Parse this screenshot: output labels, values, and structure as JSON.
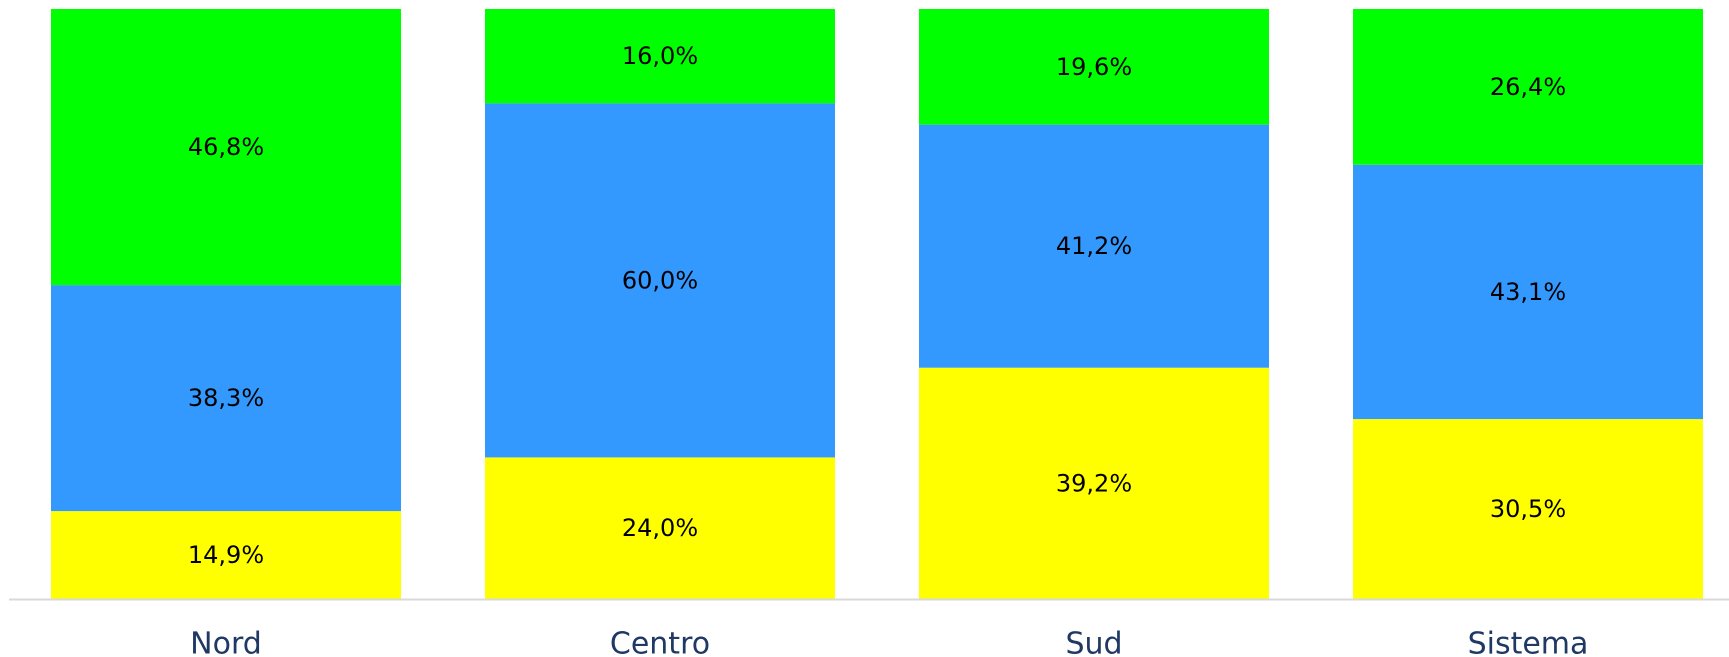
{
  "chart_data": {
    "type": "bar",
    "stacked": true,
    "categories": [
      "Nord",
      "Centro",
      "Sud",
      "Sistema"
    ],
    "series": [
      {
        "color": "#ffff00",
        "values": [
          14.9,
          24.0,
          39.2,
          30.5
        ],
        "labels": [
          "14,9%",
          "24,0%",
          "39,2%",
          "30,5%"
        ]
      },
      {
        "color": "#3399ff",
        "values": [
          38.3,
          60.0,
          41.2,
          43.1
        ],
        "labels": [
          "38,3%",
          "60,0%",
          "41,2%",
          "43,1%"
        ]
      },
      {
        "color": "#00ff00",
        "values": [
          46.8,
          16.0,
          19.6,
          26.4
        ],
        "labels": [
          "46,8%",
          "16,0%",
          "19,6%",
          "26,4%"
        ]
      }
    ],
    "ylim": [
      0,
      100
    ],
    "grid": false,
    "legend": "none",
    "axis_line_color": "#d9d9d9",
    "tick_label_color": "#1f3864"
  }
}
